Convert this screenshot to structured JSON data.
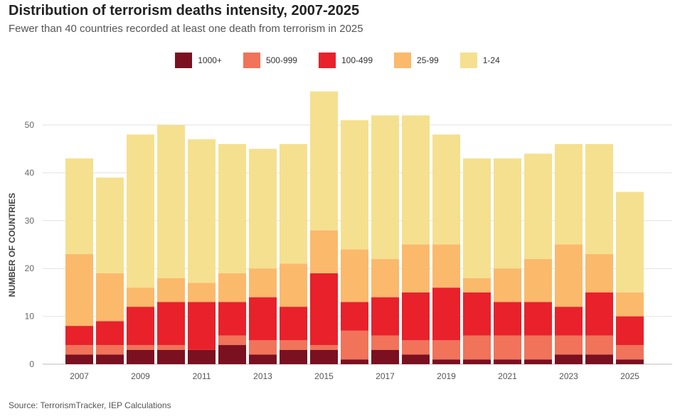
{
  "title": "Distribution of terrorism deaths intensity, 2007-2025",
  "subtitle": "Fewer than 40 countries recorded at least one death from terrorism in 2025",
  "source": "Source: TerrorismTracker, IEP Calculations",
  "chart_data": {
    "type": "bar",
    "stacked": true,
    "ylabel": "NUMBER OF COUNTRIES",
    "xlabel": "",
    "ylim": [
      0,
      58
    ],
    "yticks": [
      0,
      10,
      20,
      30,
      40,
      50
    ],
    "grid": true,
    "legend_position": "top",
    "categories": [
      "2007",
      "2008",
      "2009",
      "2010",
      "2011",
      "2012",
      "2013",
      "2014",
      "2015",
      "2016",
      "2017",
      "2018",
      "2019",
      "2020",
      "2021",
      "2022",
      "2023",
      "2024",
      "2025"
    ],
    "xtick_labels": [
      "2007",
      "2009",
      "2011",
      "2013",
      "2015",
      "2017",
      "2019",
      "2021",
      "2023",
      "2025"
    ],
    "series": [
      {
        "name": "1000+",
        "color": "#7b1020",
        "values": [
          2,
          2,
          3,
          3,
          3,
          4,
          2,
          3,
          3,
          1,
          3,
          2,
          1,
          1,
          1,
          1,
          2,
          2,
          1
        ]
      },
      {
        "name": "500-999",
        "color": "#f0735a",
        "values": [
          2,
          2,
          1,
          1,
          0,
          2,
          3,
          2,
          1,
          6,
          3,
          3,
          4,
          5,
          5,
          5,
          4,
          4,
          3
        ]
      },
      {
        "name": "100-499",
        "color": "#e8212b",
        "values": [
          4,
          5,
          8,
          9,
          10,
          7,
          9,
          7,
          15,
          6,
          8,
          10,
          11,
          9,
          7,
          7,
          6,
          9,
          6
        ]
      },
      {
        "name": "25-99",
        "color": "#fbb96b",
        "values": [
          15,
          10,
          4,
          5,
          4,
          6,
          6,
          9,
          9,
          11,
          8,
          10,
          9,
          3,
          7,
          9,
          13,
          8,
          5
        ]
      },
      {
        "name": "1-24",
        "color": "#f5e08f",
        "values": [
          20,
          20,
          32,
          32,
          30,
          27,
          25,
          25,
          29,
          27,
          30,
          27,
          23,
          25,
          23,
          22,
          21,
          23,
          21
        ]
      }
    ]
  }
}
